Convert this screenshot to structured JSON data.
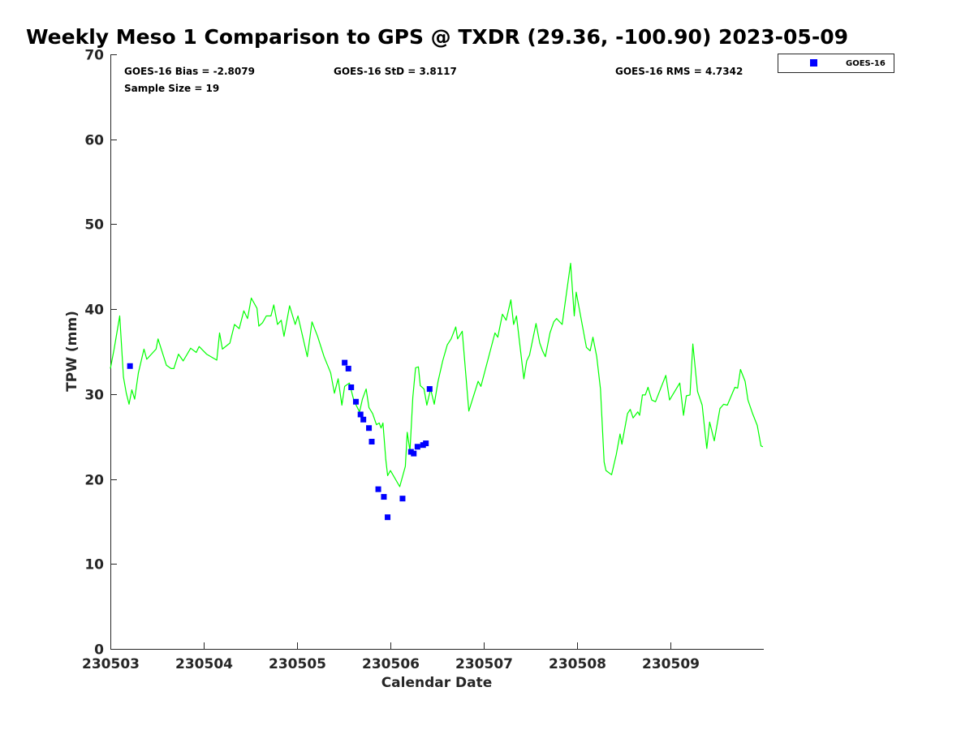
{
  "chart_data": {
    "type": "scatter",
    "title": "Weekly Meso 1 Comparison to GPS @ TXDR (29.36, -100.90) 2023-05-09",
    "xlabel": "Calendar Date",
    "ylabel": "TPW (mm)",
    "xlim": [
      0,
      7
    ],
    "ylim": [
      0,
      70
    ],
    "xticks": [
      0,
      1,
      2,
      3,
      4,
      5,
      6
    ],
    "xtick_labels": [
      "230503",
      "230504",
      "230505",
      "230506",
      "230507",
      "230508",
      "230509"
    ],
    "yticks": [
      0,
      10,
      20,
      30,
      40,
      50,
      60,
      70
    ],
    "ytick_labels": [
      "0",
      "10",
      "20",
      "30",
      "40",
      "50",
      "60",
      "70"
    ],
    "grid": false,
    "legend": {
      "placement": "outside-top-right",
      "entries": [
        "GOES-16"
      ]
    },
    "stats": {
      "bias": "GOES-16 Bias = -2.8079",
      "std": "GOES-16 StD = 3.8117",
      "rms": "GOES-16 RMS = 4.7342",
      "sample_size": "Sample Size = 19"
    },
    "series": [
      {
        "name": "GPS",
        "kind": "line",
        "color": "#00ff00",
        "points": [
          [
            0.0,
            33.0
          ],
          [
            0.04,
            35.3
          ],
          [
            0.1,
            39.2
          ],
          [
            0.14,
            32.0
          ],
          [
            0.17,
            30.1
          ],
          [
            0.2,
            28.8
          ],
          [
            0.23,
            30.5
          ],
          [
            0.26,
            29.4
          ],
          [
            0.3,
            32.5
          ],
          [
            0.36,
            35.3
          ],
          [
            0.39,
            34.1
          ],
          [
            0.49,
            35.3
          ],
          [
            0.51,
            36.5
          ],
          [
            0.6,
            33.4
          ],
          [
            0.65,
            33.0
          ],
          [
            0.68,
            33.0
          ],
          [
            0.73,
            34.7
          ],
          [
            0.78,
            33.9
          ],
          [
            0.86,
            35.4
          ],
          [
            0.92,
            34.9
          ],
          [
            0.95,
            35.6
          ],
          [
            1.03,
            34.7
          ],
          [
            1.14,
            34.0
          ],
          [
            1.17,
            37.2
          ],
          [
            1.2,
            35.3
          ],
          [
            1.28,
            36.0
          ],
          [
            1.33,
            38.2
          ],
          [
            1.38,
            37.7
          ],
          [
            1.43,
            39.8
          ],
          [
            1.47,
            38.9
          ],
          [
            1.51,
            41.3
          ],
          [
            1.57,
            40.1
          ],
          [
            1.59,
            38.0
          ],
          [
            1.63,
            38.4
          ],
          [
            1.67,
            39.2
          ],
          [
            1.72,
            39.2
          ],
          [
            1.75,
            40.5
          ],
          [
            1.79,
            38.2
          ],
          [
            1.83,
            38.7
          ],
          [
            1.86,
            36.8
          ],
          [
            1.92,
            40.4
          ],
          [
            1.98,
            38.2
          ],
          [
            2.01,
            39.2
          ],
          [
            2.11,
            34.4
          ],
          [
            2.16,
            38.5
          ],
          [
            2.22,
            36.8
          ],
          [
            2.29,
            34.4
          ],
          [
            2.36,
            32.5
          ],
          [
            2.4,
            30.1
          ],
          [
            2.44,
            31.8
          ],
          [
            2.48,
            28.7
          ],
          [
            2.51,
            30.9
          ],
          [
            2.56,
            31.3
          ],
          [
            2.61,
            29.2
          ],
          [
            2.67,
            27.9
          ],
          [
            2.7,
            29.4
          ],
          [
            2.74,
            30.6
          ],
          [
            2.77,
            28.4
          ],
          [
            2.81,
            27.7
          ],
          [
            2.85,
            26.4
          ],
          [
            2.88,
            26.6
          ],
          [
            2.9,
            26.0
          ],
          [
            2.92,
            26.6
          ],
          [
            2.95,
            22.3
          ],
          [
            2.97,
            20.4
          ],
          [
            3.0,
            21.0
          ],
          [
            3.1,
            19.1
          ],
          [
            3.16,
            21.5
          ],
          [
            3.18,
            25.5
          ],
          [
            3.21,
            23.3
          ],
          [
            3.24,
            29.6
          ],
          [
            3.27,
            33.1
          ],
          [
            3.3,
            33.2
          ],
          [
            3.32,
            31.0
          ],
          [
            3.36,
            30.6
          ],
          [
            3.39,
            28.7
          ],
          [
            3.43,
            30.6
          ],
          [
            3.47,
            28.8
          ],
          [
            3.51,
            31.5
          ],
          [
            3.56,
            33.9
          ],
          [
            3.61,
            35.8
          ],
          [
            3.65,
            36.5
          ],
          [
            3.7,
            37.9
          ],
          [
            3.72,
            36.5
          ],
          [
            3.77,
            37.4
          ],
          [
            3.84,
            28.0
          ],
          [
            3.94,
            31.5
          ],
          [
            3.97,
            30.9
          ],
          [
            4.12,
            37.2
          ],
          [
            4.15,
            36.7
          ],
          [
            4.2,
            39.4
          ],
          [
            4.24,
            38.7
          ],
          [
            4.29,
            41.1
          ],
          [
            4.32,
            38.2
          ],
          [
            4.35,
            39.2
          ],
          [
            4.43,
            31.8
          ],
          [
            4.46,
            33.9
          ],
          [
            4.49,
            34.6
          ],
          [
            4.56,
            38.3
          ],
          [
            4.6,
            36.0
          ],
          [
            4.63,
            35.1
          ],
          [
            4.66,
            34.4
          ],
          [
            4.71,
            37.2
          ],
          [
            4.75,
            38.5
          ],
          [
            4.78,
            38.9
          ],
          [
            4.84,
            38.2
          ],
          [
            4.93,
            45.4
          ],
          [
            4.97,
            39.2
          ],
          [
            4.99,
            42.0
          ],
          [
            5.1,
            35.5
          ],
          [
            5.14,
            35.1
          ],
          [
            5.17,
            36.7
          ],
          [
            5.21,
            34.4
          ],
          [
            5.25,
            30.6
          ],
          [
            5.29,
            22.0
          ],
          [
            5.31,
            21.0
          ],
          [
            5.37,
            20.5
          ],
          [
            5.42,
            22.9
          ],
          [
            5.46,
            25.3
          ],
          [
            5.48,
            24.1
          ],
          [
            5.54,
            27.7
          ],
          [
            5.57,
            28.2
          ],
          [
            5.6,
            27.2
          ],
          [
            5.65,
            27.9
          ],
          [
            5.67,
            27.5
          ],
          [
            5.7,
            29.9
          ],
          [
            5.73,
            29.9
          ],
          [
            5.76,
            30.8
          ],
          [
            5.8,
            29.3
          ],
          [
            5.84,
            29.1
          ],
          [
            5.9,
            30.8
          ],
          [
            5.95,
            32.2
          ],
          [
            5.99,
            29.3
          ],
          [
            6.1,
            31.3
          ],
          [
            6.14,
            27.5
          ],
          [
            6.17,
            29.8
          ],
          [
            6.21,
            29.9
          ],
          [
            6.24,
            35.9
          ],
          [
            6.29,
            30.3
          ],
          [
            6.34,
            28.7
          ],
          [
            6.36,
            26.6
          ],
          [
            6.39,
            23.6
          ],
          [
            6.42,
            26.7
          ],
          [
            6.47,
            24.5
          ],
          [
            6.53,
            28.3
          ],
          [
            6.57,
            28.8
          ],
          [
            6.61,
            28.7
          ],
          [
            6.69,
            30.8
          ],
          [
            6.72,
            30.7
          ],
          [
            6.75,
            32.9
          ],
          [
            6.8,
            31.5
          ],
          [
            6.83,
            29.3
          ],
          [
            6.88,
            27.7
          ],
          [
            6.93,
            26.3
          ],
          [
            6.97,
            23.9
          ],
          [
            6.99,
            23.8
          ]
        ]
      },
      {
        "name": "GOES-16",
        "kind": "scatter",
        "marker": "square",
        "color": "#0000ff",
        "points": [
          [
            0.21,
            33.3
          ],
          [
            2.51,
            33.7
          ],
          [
            2.55,
            33.0
          ],
          [
            2.58,
            30.8
          ],
          [
            2.63,
            29.1
          ],
          [
            2.68,
            27.6
          ],
          [
            2.71,
            27.0
          ],
          [
            2.77,
            26.0
          ],
          [
            2.8,
            24.4
          ],
          [
            2.87,
            18.8
          ],
          [
            2.93,
            17.9
          ],
          [
            2.97,
            15.5
          ],
          [
            3.13,
            17.7
          ],
          [
            3.22,
            23.2
          ],
          [
            3.25,
            23.0
          ],
          [
            3.29,
            23.8
          ],
          [
            3.35,
            24.0
          ],
          [
            3.38,
            24.2
          ],
          [
            3.42,
            30.6
          ]
        ]
      }
    ]
  }
}
